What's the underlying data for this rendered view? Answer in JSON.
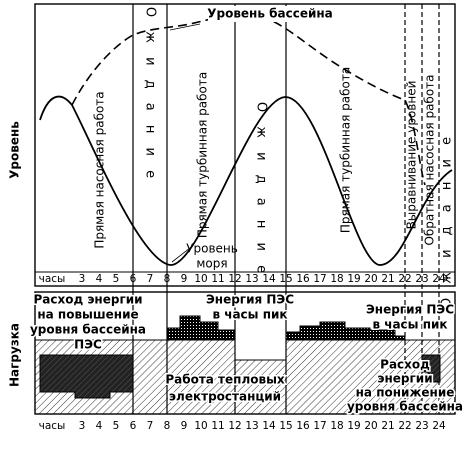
{
  "top_panel": {
    "axis_title": "Уровень",
    "basin_level": "Уровень бассейна",
    "sea_level": [
      "Уровень",
      "моря"
    ],
    "phases": [
      "Прямая насосная работа",
      "О ж и д а н и е",
      "Прямая турбинная работа",
      "О ж и д а н и е",
      "Прямая турбинная работа",
      "Выравнивание уровней",
      "Обратная насосная работа",
      "О ж и д а н и е"
    ],
    "hour_axis": [
      "часы",
      "3",
      "4",
      "5",
      "6",
      "7",
      "8",
      "9",
      "10",
      "11",
      "12",
      "13",
      "14",
      "15",
      "16",
      "17",
      "18",
      "19",
      "20",
      "21",
      "22",
      "23",
      "24"
    ]
  },
  "bottom_panel": {
    "axis_title": "Нагрузка",
    "pump_up": [
      "Расход энергии",
      "на повышение",
      "уровня бассейна",
      "ПЭС"
    ],
    "peak_energy_1": [
      "Энергия ПЭС",
      "в часы пик"
    ],
    "peak_energy_2": [
      "Энергия ПЭС",
      "в часы пик"
    ],
    "thermal": [
      "Работа тепловых",
      "электростанций"
    ],
    "pump_down": [
      "Расход",
      "энергии",
      "на понижение",
      "уровня бассейна"
    ],
    "hour_axis": [
      "часы",
      "3",
      "4",
      "5",
      "6",
      "7",
      "8",
      "9",
      "10",
      "11",
      "12",
      "13",
      "14",
      "15",
      "16",
      "17",
      "18",
      "19",
      "20",
      "21",
      "22",
      "23",
      "24"
    ]
  }
}
